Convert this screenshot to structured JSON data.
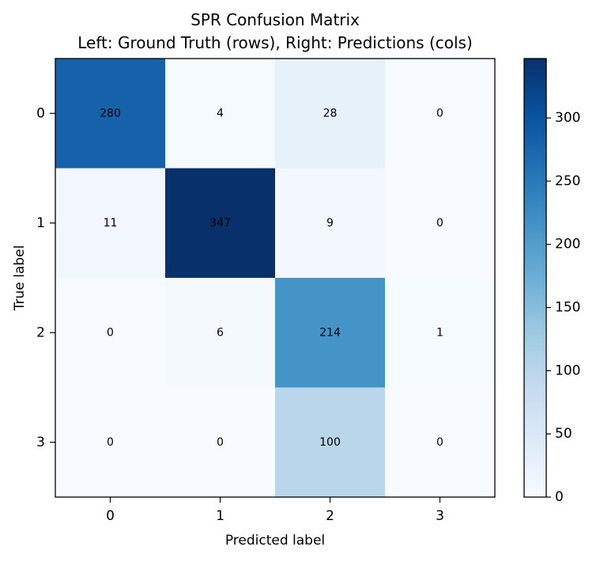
{
  "chart_data": {
    "type": "heatmap",
    "title_lines": [
      "SPR Confusion Matrix",
      "Left: Ground Truth (rows), Right: Predictions (cols)"
    ],
    "xlabel": "Predicted label",
    "ylabel": "True label",
    "x_categories": [
      "0",
      "1",
      "2",
      "3"
    ],
    "y_categories": [
      "0",
      "1",
      "2",
      "3"
    ],
    "matrix": [
      [
        280,
        4,
        28,
        0
      ],
      [
        11,
        347,
        9,
        0
      ],
      [
        0,
        6,
        214,
        1
      ],
      [
        0,
        0,
        100,
        0
      ]
    ],
    "colormap": "Blues",
    "colorbar": {
      "min": 0,
      "max": 347,
      "ticks": [
        0,
        50,
        100,
        150,
        200,
        250,
        300
      ]
    },
    "grid": false,
    "annotation_color": "#000000"
  }
}
